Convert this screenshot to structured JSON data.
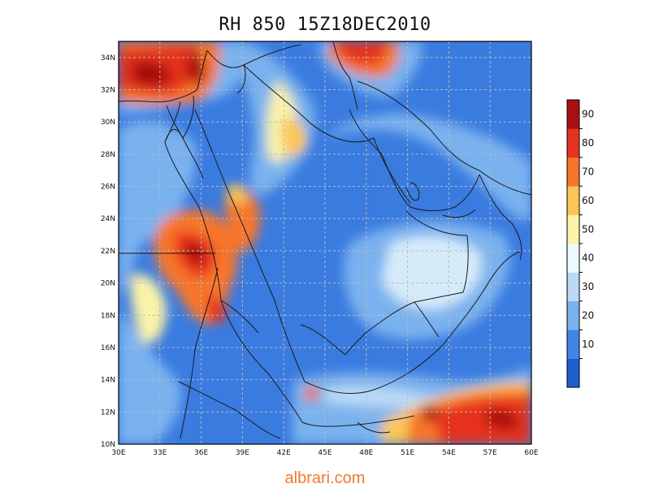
{
  "title": "RH 850 15Z18DEC2010",
  "footer": "albrari.com",
  "map": {
    "lon_range": [
      30,
      60
    ],
    "lat_range": [
      10,
      35
    ],
    "x_ticks": [
      "30E",
      "33E",
      "36E",
      "39E",
      "42E",
      "45E",
      "48E",
      "51E",
      "54E",
      "57E",
      "60E"
    ],
    "y_ticks": [
      "10N",
      "12N",
      "14N",
      "16N",
      "18N",
      "20N",
      "22N",
      "24N",
      "26N",
      "28N",
      "30N",
      "32N",
      "34N"
    ],
    "gridlines": "dashed",
    "base_color": "#3a7be0"
  },
  "colorbar": {
    "labels": [
      "10",
      "20",
      "30",
      "40",
      "50",
      "60",
      "70",
      "80",
      "90"
    ],
    "colors": [
      "#1f5fd0",
      "#3f86e6",
      "#7ab2ef",
      "#bcdaf6",
      "#ecfaff",
      "#fbf3a8",
      "#fbc657",
      "#f7762a",
      "#e6331f",
      "#a90f10"
    ]
  }
}
